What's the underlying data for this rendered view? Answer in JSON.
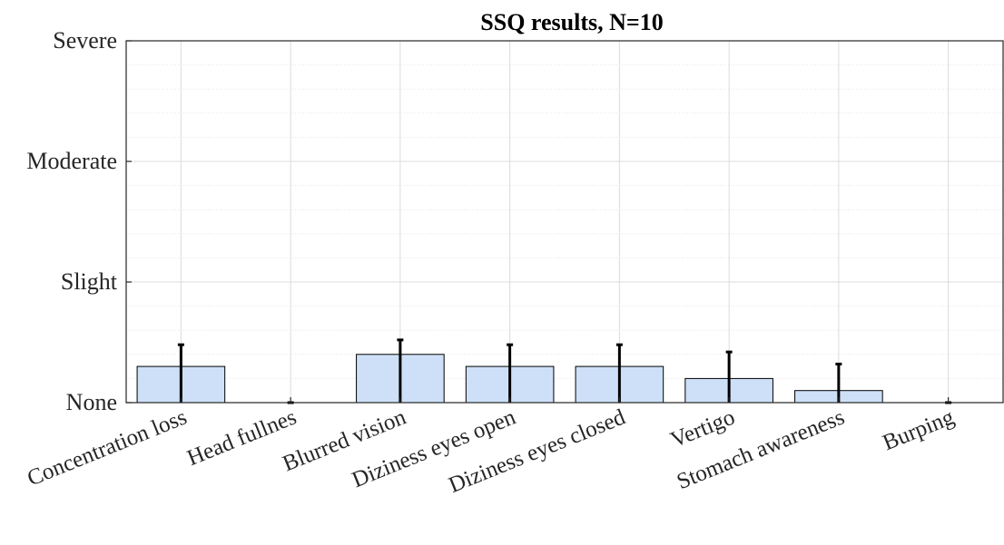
{
  "chart_data": {
    "type": "bar",
    "title": "SSQ results, N=10",
    "xlabel": "",
    "ylabel": "",
    "categories": [
      "Concentration loss",
      "Head fullnes",
      "Blurred vision",
      "Diziness eyes open",
      "Diziness eyes closed",
      "Vertigo",
      "Stomach awareness",
      "Burping"
    ],
    "values": [
      0.3,
      0.0,
      0.4,
      0.3,
      0.3,
      0.2,
      0.1,
      0.0
    ],
    "error_upper": [
      0.48,
      0.0,
      0.52,
      0.48,
      0.48,
      0.42,
      0.32,
      0.0
    ],
    "ylim": [
      0,
      3
    ],
    "yticks": [
      {
        "value": 0,
        "label": "None"
      },
      {
        "value": 1,
        "label": "Slight"
      },
      {
        "value": 2,
        "label": "Moderate"
      },
      {
        "value": 3,
        "label": "Severe"
      }
    ],
    "minor_grid_step": 0.2,
    "grid": true,
    "bar_color": "#cde0f7",
    "bar_edge_color": "#000000",
    "error_bar_color": "#000000",
    "grid_color": "#dcdcdc"
  }
}
